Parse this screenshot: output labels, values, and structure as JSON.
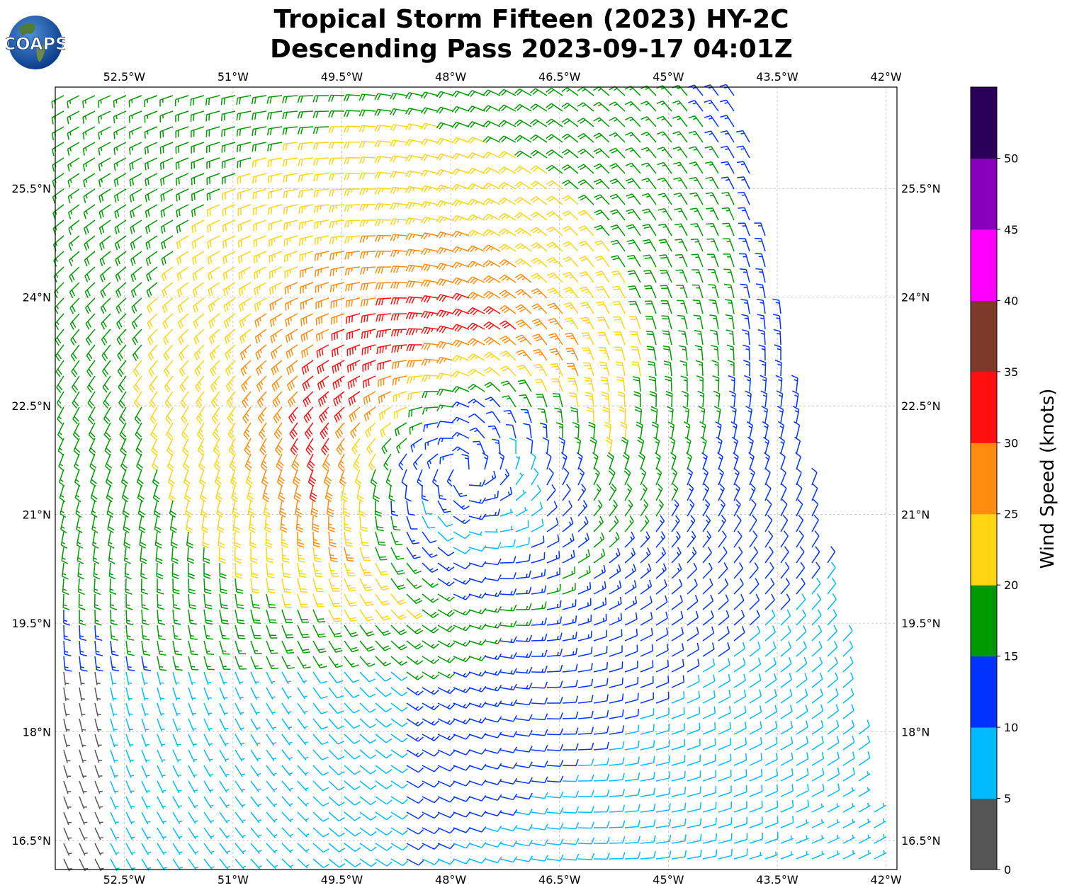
{
  "title_line1": "Tropical Storm Fifteen (2023) HY-2C",
  "title_line2": "Descending Pass 2023-09-17 04:01Z",
  "logo_text": "COAPS",
  "map": {
    "lon_min": -53.45,
    "lon_max": -41.85,
    "lat_min": 16.1,
    "lat_max": 26.9,
    "lon_ticks": [
      -52.5,
      -51,
      -49.5,
      -48,
      -46.5,
      -45,
      -43.5,
      -42
    ],
    "lon_tick_labels": [
      "52.5°W",
      "51°W",
      "49.5°W",
      "48°W",
      "46.5°W",
      "45°W",
      "43.5°W",
      "42°W"
    ],
    "lat_ticks": [
      16.5,
      18,
      19.5,
      21,
      22.5,
      24,
      25.5
    ],
    "lat_tick_labels": [
      "16.5°N",
      "18°N",
      "19.5°N",
      "21°N",
      "22.5°N",
      "24°N",
      "25.5°N"
    ],
    "storm_center": {
      "lon": -47.8,
      "lat": 21.6
    },
    "grid": true
  },
  "colorbar": {
    "label": "Wind Speed (knots)",
    "ticks": [
      0,
      5,
      10,
      15,
      20,
      25,
      30,
      35,
      40,
      45,
      50
    ],
    "tick_labels": [
      "0",
      "5",
      "10",
      "15",
      "20",
      "25",
      "30",
      "35",
      "40",
      "45",
      "50"
    ],
    "bins": [
      {
        "min": 0,
        "max": 5,
        "color": "#555555"
      },
      {
        "min": 5,
        "max": 10,
        "color": "#00bbff"
      },
      {
        "min": 10,
        "max": 15,
        "color": "#0033ff"
      },
      {
        "min": 15,
        "max": 20,
        "color": "#009900"
      },
      {
        "min": 20,
        "max": 25,
        "color": "#ffd514"
      },
      {
        "min": 25,
        "max": 30,
        "color": "#ff8c0e"
      },
      {
        "min": 30,
        "max": 35,
        "color": "#ff1010"
      },
      {
        "min": 35,
        "max": 40,
        "color": "#7d3a2a"
      },
      {
        "min": 40,
        "max": 45,
        "color": "#ff00ff"
      },
      {
        "min": 45,
        "max": 50,
        "color": "#8800bb"
      },
      {
        "min": 50,
        "max": 55,
        "color": "#2a0058"
      }
    ]
  }
}
